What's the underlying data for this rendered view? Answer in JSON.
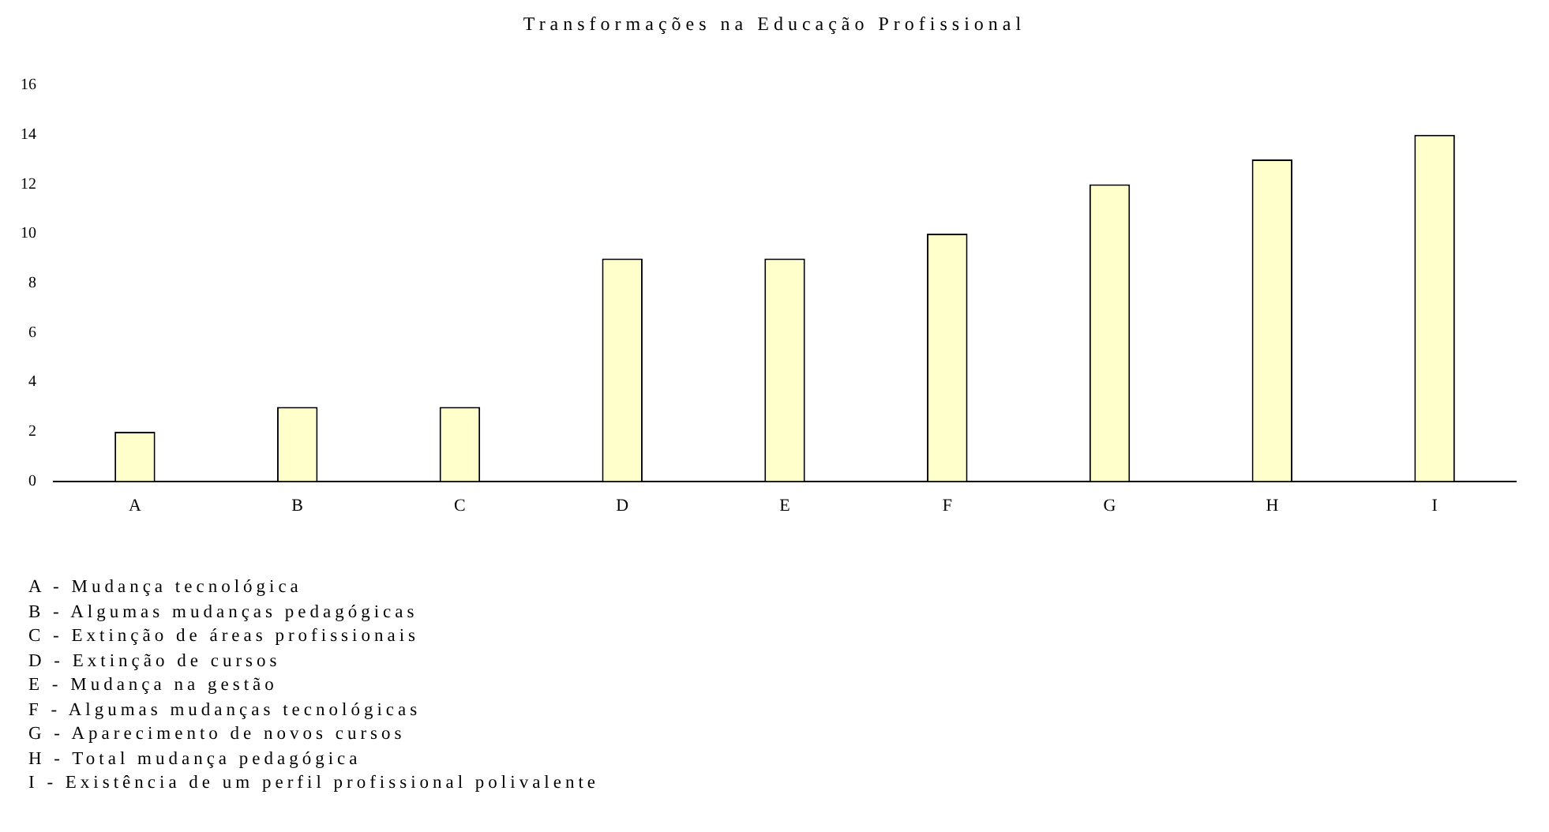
{
  "chart_data": {
    "type": "bar",
    "title": "Transformações na Educação Profissional",
    "categories": [
      "A",
      "B",
      "C",
      "D",
      "E",
      "F",
      "G",
      "H",
      "I"
    ],
    "values": [
      2,
      3,
      3,
      9,
      9,
      10,
      12,
      13,
      14
    ],
    "color": "#ffffcc",
    "ylim": [
      0,
      16
    ],
    "yticks": [
      0,
      2,
      4,
      6,
      8,
      10,
      12,
      14,
      16
    ],
    "grid": false,
    "legend": false,
    "annotations": [
      "A - Mudança tecnológica",
      "B - Algumas mudanças pedagógicas",
      "C - Extinção de áreas profissionais",
      "D - Extinção de cursos",
      "E - Mudança na gestão",
      "F - Algumas mudanças tecnológicas",
      "G - Aparecimento de novos cursos",
      "H - Total mudança pedagógica",
      "I - Existência de um perfil profissional polivalente"
    ]
  }
}
